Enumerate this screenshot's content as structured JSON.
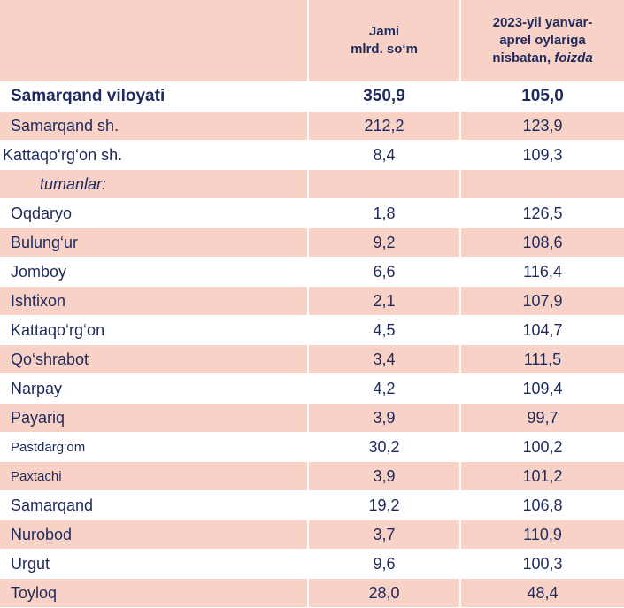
{
  "header": {
    "col1_line1": "Jami",
    "col1_line2": "mlrd. so‘m",
    "col2_line1": "2023-yil yanvar-",
    "col2_line2": "aprel oylariga",
    "col2_line3_plain": "nisbatan, ",
    "col2_line3_italic": "foizda"
  },
  "rows": [
    {
      "name": "Samarqand viloyati",
      "total": "350,9",
      "percent": "105,0"
    },
    {
      "name": "Samarqand sh.",
      "total": "212,2",
      "percent": "123,9"
    },
    {
      "name": "Kattaqo‘rg‘on sh.",
      "total": "8,4",
      "percent": "109,3"
    },
    {
      "name": "tumanlar:",
      "total": "",
      "percent": ""
    },
    {
      "name": "Oqdaryo",
      "total": "1,8",
      "percent": "126,5"
    },
    {
      "name": "Bulung‘ur",
      "total": "9,2",
      "percent": "108,6"
    },
    {
      "name": "Jomboy",
      "total": "6,6",
      "percent": "116,4"
    },
    {
      "name": "Ishtixon",
      "total": "2,1",
      "percent": "107,9"
    },
    {
      "name": "Kattaqo‘rg‘on",
      "total": "4,5",
      "percent": "104,7"
    },
    {
      "name": "Qo‘shrabot",
      "total": "3,4",
      "percent": "111,5"
    },
    {
      "name": "Narpay",
      "total": "4,2",
      "percent": "109,4"
    },
    {
      "name": "Payariq",
      "total": "3,9",
      "percent": "99,7"
    },
    {
      "name": "Pastdarg‘om",
      "total": "30,2",
      "percent": "100,2"
    },
    {
      "name": "Paxtachi",
      "total": "3,9",
      "percent": "101,2"
    },
    {
      "name": "Samarqand",
      "total": "19,2",
      "percent": "106,8"
    },
    {
      "name": "Nurobod",
      "total": "3,7",
      "percent": "110,9"
    },
    {
      "name": "Urgut",
      "total": "9,6",
      "percent": "100,3"
    },
    {
      "name": "Toyloq",
      "total": "28,0",
      "percent": "48,4"
    }
  ]
}
